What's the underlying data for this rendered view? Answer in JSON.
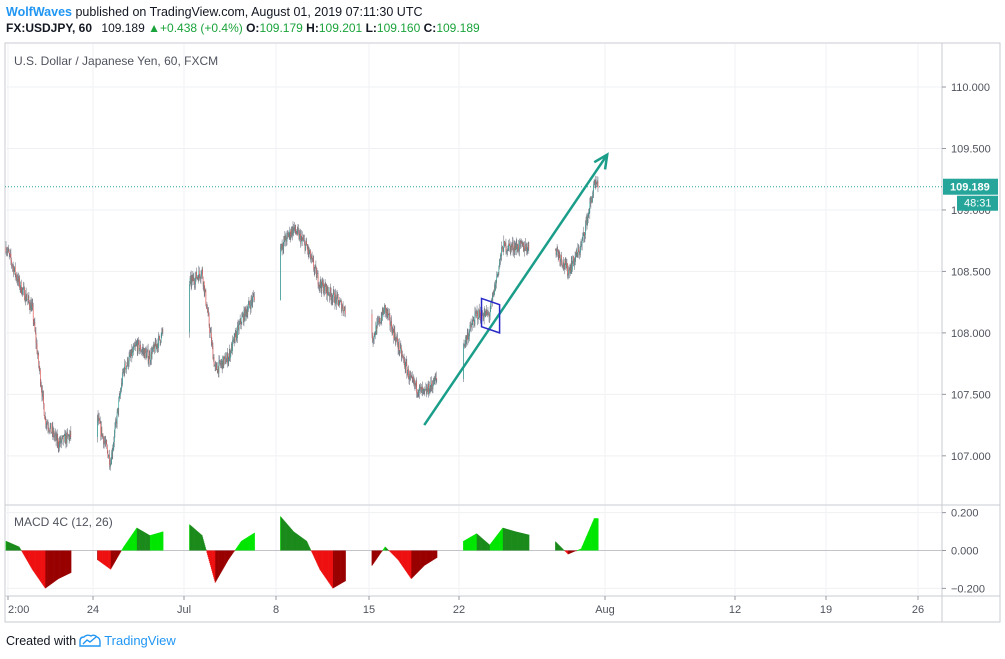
{
  "header": {
    "author": "WolfWaves",
    "published_text": "published on TradingView.com, August 01, 2019 07:11:30 UTC",
    "symbol": "FX:USDJPY, 60",
    "price": "109.189",
    "change": "+0.438 (+0.4%)",
    "open_label": "O:",
    "open": "109.179",
    "high_label": "H:",
    "high": "109.201",
    "low_label": "L:",
    "low": "109.160",
    "close_label": "C:",
    "close": "109.189"
  },
  "chart_data": [
    {
      "type": "candlestick",
      "title": "U.S. Dollar / Japanese Yen, 60, FXCM",
      "ylim": [
        106.6,
        110.35
      ],
      "y_ticks": [
        107.0,
        107.5,
        108.0,
        108.5,
        109.0,
        109.5,
        110.0
      ],
      "y_tick_labels": [
        "107.000",
        "107.500",
        "108.000",
        "108.500",
        "109.000",
        "109.500",
        "110.000"
      ],
      "x_tick_labels": [
        "2:00",
        "24",
        "Jul",
        "8",
        "15",
        "22",
        "Aug",
        "12",
        "19",
        "26"
      ],
      "last_price": 109.189,
      "last_price_label": "109.189",
      "countdown": "48:31",
      "path": [
        [
          "17 Jun",
          108.7
        ],
        [
          "18 Jun",
          108.4
        ],
        [
          "19 Jun",
          108.2
        ],
        [
          "20 Jun",
          107.3
        ],
        [
          "21 Jun",
          107.1
        ],
        [
          "24 Jun",
          107.3
        ],
        [
          "25 Jun",
          106.95
        ],
        [
          "26 Jun",
          107.7
        ],
        [
          "27 Jun",
          107.9
        ],
        [
          "28 Jun",
          107.8
        ],
        [
          "01 Jul",
          108.4
        ],
        [
          "02 Jul",
          108.5
        ],
        [
          "03 Jul",
          107.7
        ],
        [
          "04 Jul",
          107.8
        ],
        [
          "05 Jul",
          108.1
        ],
        [
          "08 Jul",
          108.7
        ],
        [
          "09 Jul",
          108.85
        ],
        [
          "10 Jul",
          108.7
        ],
        [
          "11 Jul",
          108.4
        ],
        [
          "12 Jul",
          108.3
        ],
        [
          "15 Jul",
          107.95
        ],
        [
          "16 Jul",
          108.2
        ],
        [
          "17 Jul",
          107.9
        ],
        [
          "18 Jul",
          107.6
        ],
        [
          "19 Jul",
          107.5
        ],
        [
          "22 Jul",
          107.9
        ],
        [
          "23 Jul",
          108.15
        ],
        [
          "24 Jul",
          108.15
        ],
        [
          "25 Jul",
          108.7
        ],
        [
          "26 Jul",
          108.7
        ],
        [
          "29 Jul",
          108.7
        ],
        [
          "30 Jul",
          108.5
        ],
        [
          "31 Jul",
          108.7
        ],
        [
          "01 Aug",
          109.19
        ]
      ],
      "annotations": {
        "trend_arrow": {
          "from": [
            "19 Jul",
            107.25
          ],
          "to": [
            "02 Aug",
            109.45
          ],
          "color": "#1a9e8a"
        },
        "flag": {
          "color": "#2929c8",
          "points": [
            [
              "23 Jul",
              108.28
            ],
            [
              "24 Jul",
              108.23
            ],
            [
              "24 Jul",
              108.0
            ],
            [
              "23 Jul",
              108.05
            ]
          ]
        }
      },
      "colors": {
        "up": "#26a69a",
        "down": "#ef5350",
        "wick": "#787b86",
        "price_line": "#26a69a"
      }
    },
    {
      "type": "bar",
      "title": "MACD 4C (12, 26)",
      "ylim": [
        -0.235,
        0.235
      ],
      "y_ticks": [
        -0.2,
        0.0,
        0.2
      ],
      "y_tick_labels": [
        "−0.200",
        "0.000",
        "0.200"
      ],
      "path": [
        [
          "17 Jun",
          0.05
        ],
        [
          "18 Jun",
          0.02
        ],
        [
          "19 Jun",
          -0.1
        ],
        [
          "20 Jun",
          -0.2
        ],
        [
          "21 Jun",
          -0.15
        ],
        [
          "24 Jun",
          -0.05
        ],
        [
          "25 Jun",
          -0.1
        ],
        [
          "26 Jun",
          0.02
        ],
        [
          "27 Jun",
          0.12
        ],
        [
          "28 Jun",
          0.08
        ],
        [
          "01 Jul",
          0.14
        ],
        [
          "02 Jul",
          0.08
        ],
        [
          "03 Jul",
          -0.17
        ],
        [
          "04 Jul",
          -0.05
        ],
        [
          "05 Jul",
          0.05
        ],
        [
          "08 Jul",
          0.18
        ],
        [
          "09 Jul",
          0.1
        ],
        [
          "10 Jul",
          0.05
        ],
        [
          "11 Jul",
          -0.1
        ],
        [
          "12 Jul",
          -0.2
        ],
        [
          "15 Jul",
          -0.08
        ],
        [
          "16 Jul",
          0.02
        ],
        [
          "17 Jul",
          -0.05
        ],
        [
          "18 Jul",
          -0.15
        ],
        [
          "19 Jul",
          -0.08
        ],
        [
          "22 Jul",
          0.05
        ],
        [
          "23 Jul",
          0.09
        ],
        [
          "24 Jul",
          0.03
        ],
        [
          "25 Jul",
          0.12
        ],
        [
          "26 Jul",
          0.1
        ],
        [
          "29 Jul",
          0.05
        ],
        [
          "30 Jul",
          -0.02
        ],
        [
          "31 Jul",
          0.01
        ],
        [
          "01 Aug",
          0.17
        ]
      ],
      "colors": {
        "up_bright": "#00e600",
        "up_dark": "#1b8a1b",
        "down_bright": "#ee1111",
        "down_dark": "#990000",
        "zero_line": "#9598a1"
      }
    }
  ],
  "footer": {
    "created_with": "Created with",
    "brand": "TradingView"
  }
}
